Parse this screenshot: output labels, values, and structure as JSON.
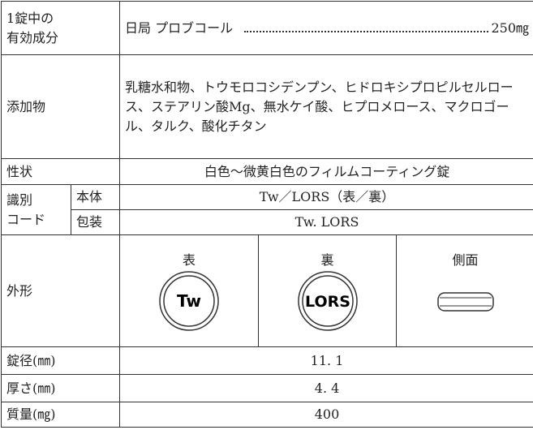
{
  "table": {
    "active": {
      "label": [
        "1錠中の",
        "有効成分"
      ],
      "ingredient": "日局 プロブコール",
      "amount": "250㎎"
    },
    "additives": {
      "label": "添加物",
      "value": "乳糖水和物、トウモロコシデンプン、ヒドロキシプロピルセルロース、ステアリン酸Mg、無水ケイ酸、ヒプロメロース、マクロゴール、タルク、酸化チタン"
    },
    "appearance": {
      "label": "性状",
      "value": "白色～微黄白色のフィルムコーティング錠"
    },
    "code": {
      "label": [
        "識別",
        "コード"
      ],
      "body_label": "本体",
      "body": "Tw／LORS（表／裏）",
      "package_label": "包装",
      "package": "Tw. LORS"
    },
    "shape": {
      "label": "外形",
      "front": "表",
      "front_mark": "Tw",
      "back": "裏",
      "back_mark": "LORS",
      "side": "側面"
    },
    "diameter": {
      "label": "錠径(㎜)",
      "value": "11. 1"
    },
    "thickness": {
      "label": "厚さ(㎜)",
      "value": "4. 4"
    },
    "weight": {
      "label": "質量(㎎)",
      "value": "400"
    }
  }
}
